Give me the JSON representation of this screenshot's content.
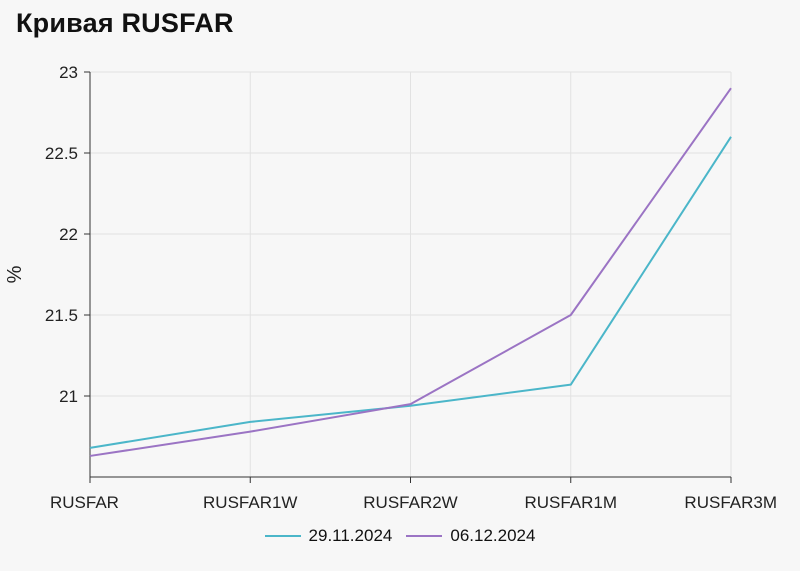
{
  "title": "Кривая RUSFAR",
  "chart_data": {
    "type": "line",
    "title": "Кривая RUSFAR",
    "ylabel": "%",
    "xlabel": "",
    "categories": [
      "RUSFAR",
      "RUSFAR1W",
      "RUSFAR2W",
      "RUSFAR1M",
      "RUSFAR3M"
    ],
    "ylim": [
      20.5,
      23
    ],
    "yticks": [
      21,
      21.5,
      22,
      22.5,
      23
    ],
    "grid": true,
    "legend": "bottom-center",
    "series": [
      {
        "name": "29.11.2024",
        "color": "#4bb6c9",
        "values": [
          20.68,
          20.84,
          20.94,
          21.07,
          22.6
        ]
      },
      {
        "name": "06.12.2024",
        "color": "#9b74c4",
        "values": [
          20.63,
          20.78,
          20.95,
          21.5,
          22.9
        ]
      }
    ]
  }
}
